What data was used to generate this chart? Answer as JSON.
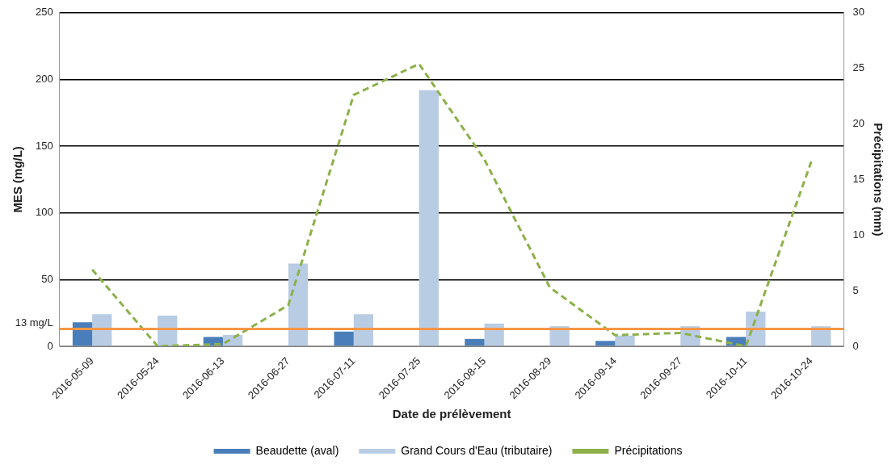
{
  "chart_data": {
    "type": "bar",
    "xlabel": "Date de prélèvement",
    "ylabel": "MES (mg/L)",
    "y2label": "Précipitations (mm)",
    "categories": [
      "2016-05-09",
      "2016-05-24",
      "2016-06-13",
      "2016-06-27",
      "2016-07-11",
      "2016-07-25",
      "2016-08-15",
      "2016-08-29",
      "2016-09-14",
      "2016-09-27",
      "2016-10-11",
      "2016-10-24"
    ],
    "series": [
      {
        "name": "Beaudette (aval)",
        "color": "#4a7ebb",
        "values": [
          18,
          null,
          7,
          null,
          11,
          null,
          5.5,
          null,
          4,
          null,
          7,
          null
        ]
      },
      {
        "name": "Grand Cours d'Eau (tributaire)",
        "color": "#b8cce4",
        "values": [
          24,
          23,
          8.5,
          62,
          24,
          192,
          17,
          15,
          8,
          15,
          26,
          15
        ]
      },
      {
        "name": "Précipitations",
        "type": "line",
        "axis": "y2",
        "color": "#8db04a",
        "line_style": "dashed",
        "marker": "none",
        "values": [
          6.9,
          0,
          0.2,
          3.7,
          22.6,
          25.4,
          16.8,
          5.3,
          1.0,
          1.2,
          0,
          16.6
        ]
      }
    ],
    "ylim": [
      0,
      250
    ],
    "yticks": [
      0,
      50,
      100,
      150,
      200,
      250
    ],
    "y2lim": [
      0,
      30
    ],
    "y2ticks": [
      0,
      5,
      10,
      15,
      20,
      25,
      30
    ],
    "ref_lines": [
      {
        "axis": "y",
        "value": 13,
        "label": "13 mg/L",
        "color": "#f79646"
      }
    ],
    "grid": "y",
    "legend": "bottom"
  }
}
